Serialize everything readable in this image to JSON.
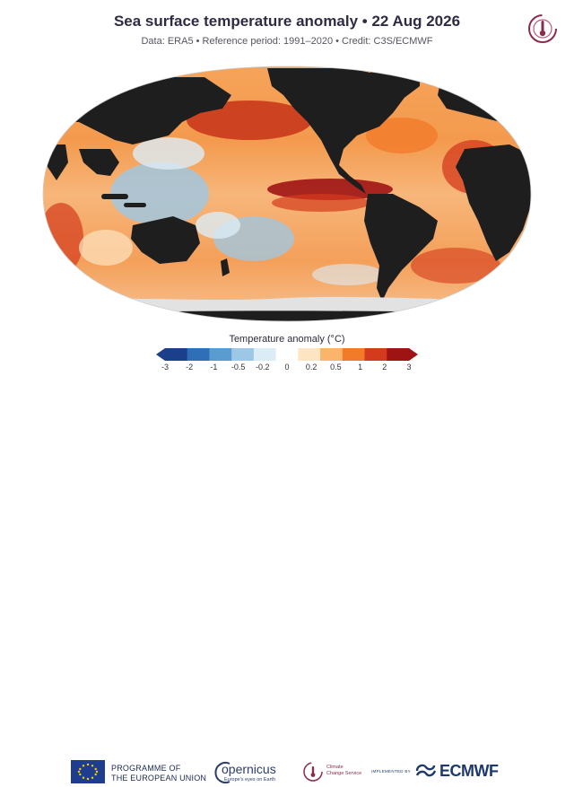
{
  "header": {
    "title": "Sea surface temperature anomaly • 22 Aug 2026",
    "subtitle": "Data: ERA5 • Reference period: 1991–2020 • Credit: C3S/ECMWF"
  },
  "legend": {
    "title": "Temperature anomaly (°C)",
    "ticks": [
      "-3",
      "-2",
      "-1",
      "-0.5",
      "-0.2",
      "0",
      "0.2",
      "0.5",
      "1",
      "2",
      "3"
    ],
    "colors": [
      "#1c3f8c",
      "#2f6fb8",
      "#5a9bd0",
      "#9cc8e6",
      "#dcecf6",
      "#ffffff",
      "#fde4c2",
      "#fbb46a",
      "#f27b2a",
      "#d43a1c",
      "#9e1414"
    ]
  },
  "map": {
    "projection": "Robinson",
    "land_color": "#1e1e1e",
    "sea_ice_color": "#e2e2e2"
  },
  "footer": {
    "eu_line1": "PROGRAMME OF",
    "eu_line2": "THE EUROPEAN UNION",
    "copernicus_word": "opernicus",
    "copernicus_tagline": "Europe's eyes on Earth",
    "ccs_line1": "Climate",
    "ccs_line2": "Change Service",
    "implemented_by": "IMPLEMENTED BY",
    "ecmwf_word": "ECMWF"
  }
}
